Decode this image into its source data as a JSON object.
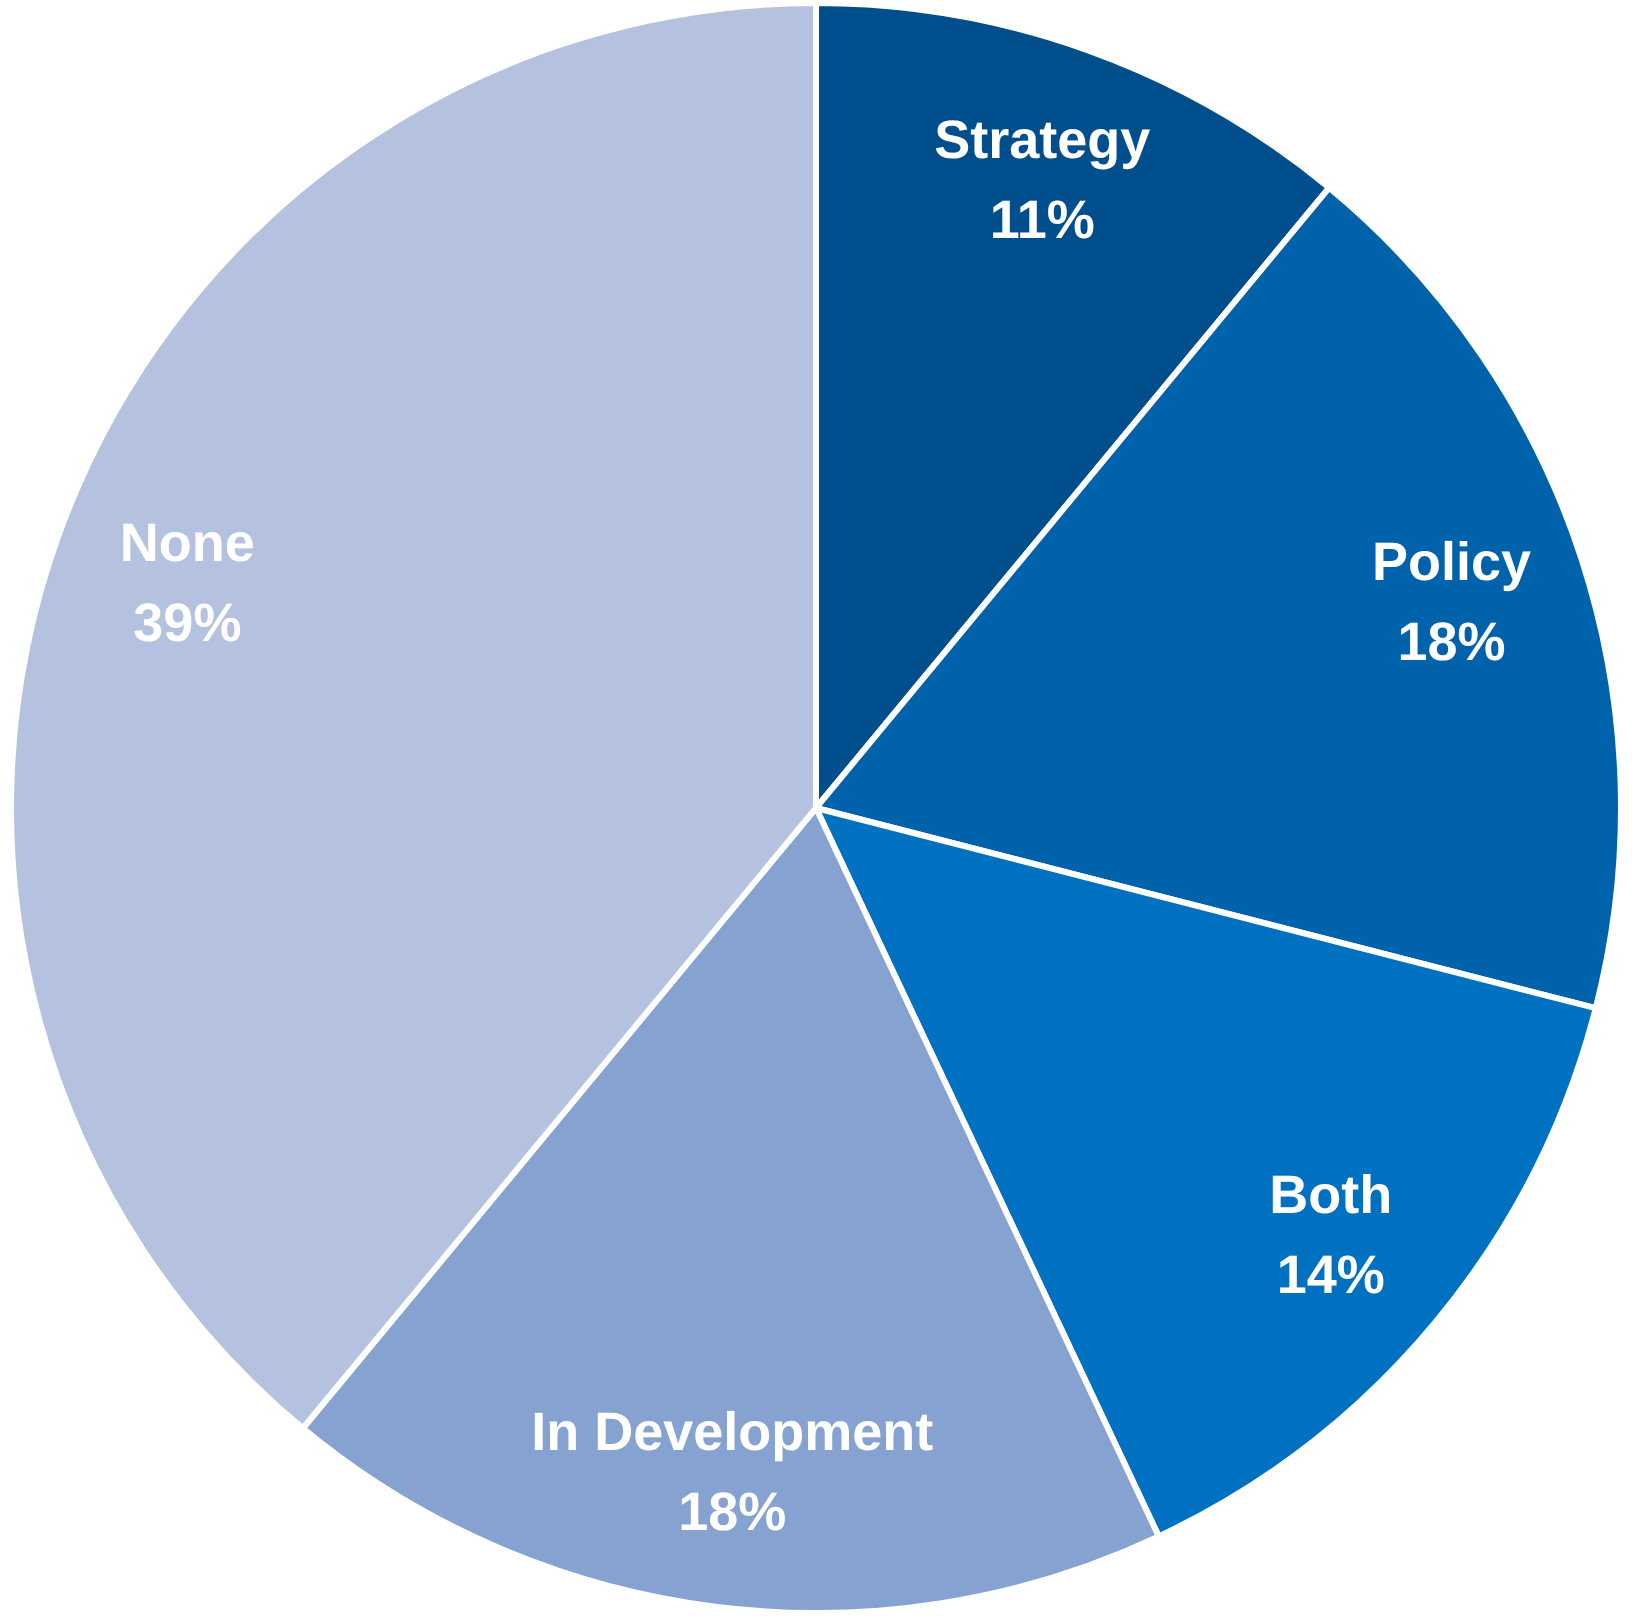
{
  "chart_data": {
    "type": "pie",
    "categories": [
      "Strategy",
      "Policy",
      "Both",
      "In Development",
      "None"
    ],
    "values": [
      11,
      18,
      14,
      18,
      39
    ],
    "value_labels": [
      "11%",
      "18%",
      "14%",
      "18%",
      "39%"
    ],
    "colors": [
      "#004f8c",
      "#0062ab",
      "#0070c0",
      "#86a2d0",
      "#b4c2e0"
    ],
    "legend": false
  }
}
